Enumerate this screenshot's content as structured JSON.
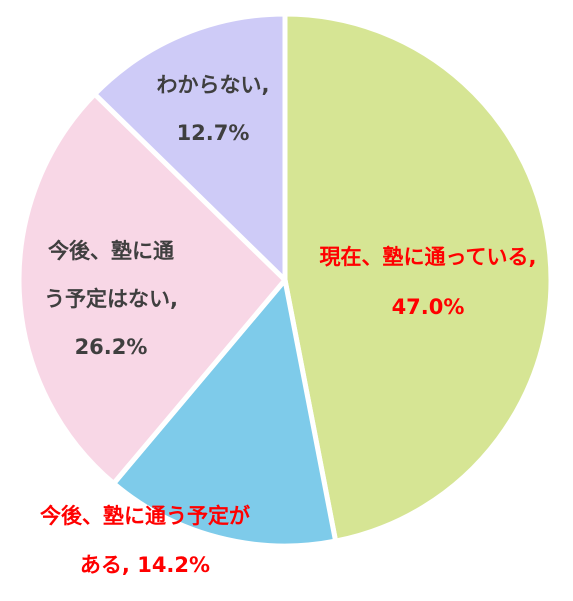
{
  "chart_data": {
    "type": "pie",
    "start": "top (12 o'clock)",
    "direction": "clockwise",
    "slices": [
      {
        "label": "現在、塾に通っている",
        "value": 47.0,
        "color": "#d6e594",
        "label_color": "#ff0000",
        "label_lines": [
          "現在、塾に通っている,",
          "47.0%"
        ]
      },
      {
        "label": "今後、塾に通う予定がある",
        "value": 14.2,
        "color": "#7ecbea",
        "label_color": "#ff0000",
        "label_lines": [
          "今後、塾に通う予定が",
          "ある, 14.2%"
        ]
      },
      {
        "label": "今後、塾に通う予定はない",
        "value": 26.2,
        "color": "#f8d7e6",
        "label_color": "#3f3f3f",
        "label_lines": [
          "今後、塾に通",
          "う予定はない,",
          "26.2%"
        ]
      },
      {
        "label": "わからない",
        "value": 12.7,
        "color": "#cecbf7",
        "label_color": "#3f3f3f",
        "label_lines": [
          "わからない,",
          "12.7%"
        ]
      }
    ]
  }
}
